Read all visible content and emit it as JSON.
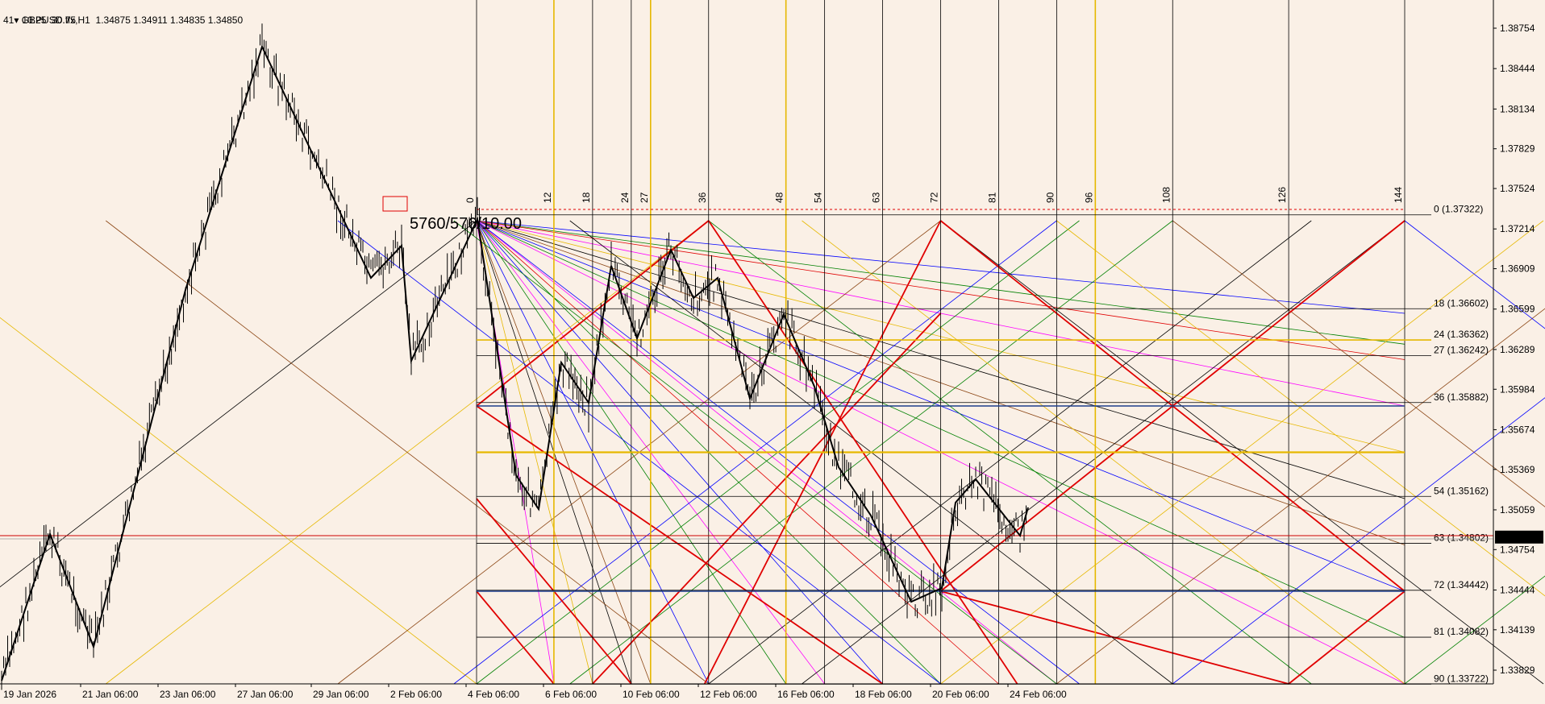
{
  "header": {
    "symbol_line": "GBPUSD.ffx,H1  1.34875 1.34911 1.34835 1.34850",
    "indicator_line": "41   10.25  30.75"
  },
  "colors": {
    "background": "#FAF0E6",
    "price_line": "#000000",
    "current_price_bg": "#000000",
    "current_price_fg": "#FFFFFF",
    "bid_line": "#CC0000",
    "level_gold": "#E6B800",
    "grid_red": "#E00000"
  },
  "annotation": {
    "text": "5760/576/10.00"
  },
  "current_price": "1.34850",
  "price_axis": {
    "min": 1.336,
    "max": 1.39,
    "ticks": [
      "1.38754",
      "1.38444",
      "1.38134",
      "1.37829",
      "1.37524",
      "1.37214",
      "1.36909",
      "1.36599",
      "1.36289",
      "1.35984",
      "1.35674",
      "1.35369",
      "1.35059",
      "1.34754",
      "1.34444",
      "1.34139",
      "1.33829"
    ]
  },
  "time_axis": {
    "labels": [
      "19 Jan 2026",
      "21 Jan 06:00",
      "23 Jan 06:00",
      "27 Jan 06:00",
      "29 Jan 06:00",
      "2 Feb 06:00",
      "4 Feb 06:00",
      "6 Feb 06:00",
      "10 Feb 06:00",
      "12 Feb 06:00",
      "16 Feb 06:00",
      "18 Feb 06:00",
      "20 Feb 06:00",
      "24 Feb 06:00"
    ]
  },
  "gann": {
    "top_labels": [
      "0",
      "12",
      "18",
      "24",
      "27",
      "36",
      "48",
      "54",
      "63",
      "72",
      "81",
      "90",
      "96",
      "108",
      "126",
      "144"
    ],
    "levels": [
      {
        "label": "0 (1.37322)",
        "price": 1.37322
      },
      {
        "label": "18 (1.36602)",
        "price": 1.36602
      },
      {
        "label": "24 (1.36362)",
        "price": 1.36362
      },
      {
        "label": "27 (1.36242)",
        "price": 1.36242
      },
      {
        "label": "36 (1.35882)",
        "price": 1.35882
      },
      {
        "label": "54 (1.35162)",
        "price": 1.35162
      },
      {
        "label": "63 (1.34802)",
        "price": 1.34802
      },
      {
        "label": "72 (1.34442)",
        "price": 1.34442
      },
      {
        "label": "81 (1.34082)",
        "price": 1.34082
      },
      {
        "label": "90 (1.33722)",
        "price": 1.33722
      }
    ]
  }
}
